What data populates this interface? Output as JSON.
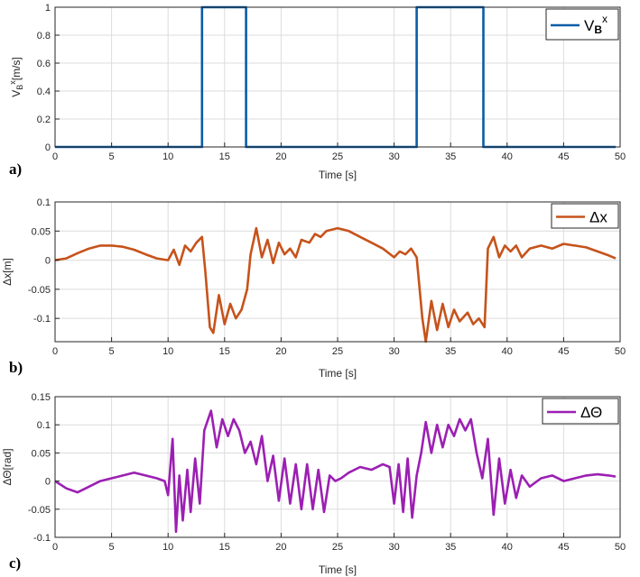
{
  "chart_data": [
    {
      "type": "line",
      "panel_label": "a)",
      "xlabel": "Time [s]",
      "ylabel": "V_B^x[m/s]",
      "ylabel_parts": {
        "main": "V",
        "sub": "B",
        "sup": "x",
        "unit": "[m/s]"
      },
      "xlim": [
        0,
        50
      ],
      "ylim": [
        0,
        1
      ],
      "xticks": [
        "0",
        "5",
        "10",
        "15",
        "20",
        "25",
        "30",
        "35",
        "40",
        "45",
        "50"
      ],
      "yticks": [
        "0",
        "0.2",
        "0.4",
        "0.6",
        "0.8",
        "1"
      ],
      "yticks_values": [
        0,
        0.2,
        0.4,
        0.6,
        0.8,
        1
      ],
      "grid": true,
      "legend": {
        "position": "top-right",
        "main": "V",
        "sub": "B",
        "sup": "x"
      },
      "series": [
        {
          "name": "V_B^x",
          "color": "#0b5ca8",
          "x": [
            0,
            13,
            13,
            16.9,
            16.9,
            32,
            32,
            37.9,
            37.9,
            49.6
          ],
          "y": [
            0,
            0,
            1,
            1,
            0,
            0,
            1,
            1,
            0,
            0
          ]
        }
      ]
    },
    {
      "type": "line",
      "panel_label": "b)",
      "xlabel": "Time [s]",
      "ylabel": "Δx[m]",
      "xlim": [
        0,
        50
      ],
      "ylim": [
        -0.14,
        0.1
      ],
      "xticks": [
        "0",
        "5",
        "10",
        "15",
        "20",
        "25",
        "30",
        "35",
        "40",
        "45",
        "50"
      ],
      "yticks": [
        "-0.1",
        "-0.05",
        "0",
        "0.05",
        "0.1"
      ],
      "yticks_values": [
        -0.1,
        -0.05,
        0,
        0.05,
        0.1
      ],
      "grid": true,
      "legend": {
        "position": "top-right",
        "label": "Δx"
      },
      "series": [
        {
          "name": "Δx",
          "color": "#c6531b",
          "x": [
            0,
            1,
            2,
            3,
            4,
            5,
            6,
            7,
            8,
            9,
            10,
            10.5,
            11,
            11.5,
            12,
            12.5,
            13,
            13.3,
            13.7,
            14,
            14.5,
            15,
            15.5,
            16,
            16.5,
            17,
            17.3,
            17.8,
            18.3,
            18.8,
            19.3,
            19.8,
            20.3,
            20.8,
            21.3,
            21.8,
            22.5,
            23,
            23.5,
            24,
            25,
            26,
            27,
            28,
            29,
            30,
            30.5,
            31,
            31.5,
            32,
            32.5,
            32.8,
            33.3,
            33.8,
            34.3,
            34.8,
            35.3,
            35.8,
            36.5,
            37,
            37.5,
            38,
            38.3,
            38.8,
            39.3,
            39.8,
            40.3,
            40.8,
            41.3,
            42,
            43,
            44,
            45,
            46,
            47,
            48,
            49,
            49.6
          ],
          "y": [
            0,
            0.003,
            0.012,
            0.02,
            0.025,
            0.025,
            0.023,
            0.018,
            0.01,
            0.003,
            0,
            0.018,
            -0.008,
            0.025,
            0.015,
            0.03,
            0.04,
            -0.02,
            -0.115,
            -0.125,
            -0.06,
            -0.11,
            -0.075,
            -0.1,
            -0.085,
            -0.05,
            0.01,
            0.055,
            0.005,
            0.035,
            -0.005,
            0.03,
            0.01,
            0.02,
            0.005,
            0.035,
            0.03,
            0.045,
            0.04,
            0.05,
            0.055,
            0.05,
            0.04,
            0.03,
            0.02,
            0.005,
            0.015,
            0.01,
            0.02,
            0.005,
            -0.1,
            -0.14,
            -0.07,
            -0.12,
            -0.075,
            -0.115,
            -0.085,
            -0.105,
            -0.09,
            -0.11,
            -0.1,
            -0.115,
            0.02,
            0.04,
            0.005,
            0.025,
            0.015,
            0.025,
            0.005,
            0.02,
            0.025,
            0.02,
            0.028,
            0.025,
            0.022,
            0.015,
            0.008,
            0.003
          ]
        }
      ]
    },
    {
      "type": "line",
      "panel_label": "c)",
      "xlabel": "Time [s]",
      "ylabel": "ΔΘ[rad]",
      "xlim": [
        0,
        50
      ],
      "ylim": [
        -0.1,
        0.15
      ],
      "xticks": [
        "0",
        "5",
        "10",
        "15",
        "20",
        "25",
        "30",
        "35",
        "40",
        "45",
        "50"
      ],
      "yticks": [
        "-0.1",
        "-0.05",
        "0",
        "0.05",
        "0.1",
        "0.15"
      ],
      "yticks_values": [
        -0.1,
        -0.05,
        0,
        0.05,
        0.1,
        0.15
      ],
      "grid": true,
      "legend": {
        "position": "top-right",
        "label": "ΔΘ"
      },
      "series": [
        {
          "name": "ΔΘ",
          "color": "#9c1fb3",
          "x": [
            0,
            1,
            2,
            3,
            4,
            5,
            6,
            7,
            8,
            9,
            9.7,
            10,
            10.4,
            10.7,
            11,
            11.3,
            11.7,
            12,
            12.4,
            12.8,
            13.2,
            13.8,
            14.3,
            14.8,
            15.3,
            15.8,
            16.3,
            16.8,
            17.3,
            17.8,
            18.3,
            18.8,
            19.3,
            19.8,
            20.3,
            20.8,
            21.3,
            21.8,
            22.3,
            22.8,
            23.3,
            23.8,
            24.3,
            24.8,
            25.3,
            26,
            27,
            28,
            29,
            29.6,
            30,
            30.4,
            30.8,
            31.2,
            31.6,
            32,
            32.4,
            32.8,
            33.3,
            33.8,
            34.3,
            34.8,
            35.3,
            35.8,
            36.3,
            36.8,
            37.3,
            37.8,
            38.3,
            38.8,
            39.3,
            39.8,
            40.3,
            40.8,
            41.3,
            42,
            43,
            44,
            45,
            46,
            47,
            48,
            49,
            49.6
          ],
          "y": [
            0,
            -0.013,
            -0.02,
            -0.01,
            0,
            0.005,
            0.01,
            0.015,
            0.01,
            0.005,
            0,
            -0.025,
            0.075,
            -0.09,
            0.01,
            -0.07,
            0.02,
            -0.055,
            0.04,
            -0.04,
            0.09,
            0.125,
            0.06,
            0.11,
            0.08,
            0.11,
            0.09,
            0.05,
            0.07,
            0.03,
            0.08,
            0,
            0.045,
            -0.035,
            0.04,
            -0.04,
            0.03,
            -0.05,
            0.03,
            -0.05,
            0.02,
            -0.055,
            0.01,
            0,
            0.005,
            0.015,
            0.025,
            0.02,
            0.03,
            0.025,
            -0.04,
            0.03,
            -0.055,
            0.04,
            -0.065,
            0.01,
            0.05,
            0.105,
            0.05,
            0.1,
            0.06,
            0.1,
            0.08,
            0.11,
            0.09,
            0.11,
            0.05,
            0.005,
            0.075,
            -0.06,
            0.04,
            -0.04,
            0.02,
            -0.03,
            0.01,
            -0.01,
            0.005,
            0.01,
            0,
            0.005,
            0.01,
            0.012,
            0.01,
            0.008
          ]
        }
      ]
    }
  ]
}
